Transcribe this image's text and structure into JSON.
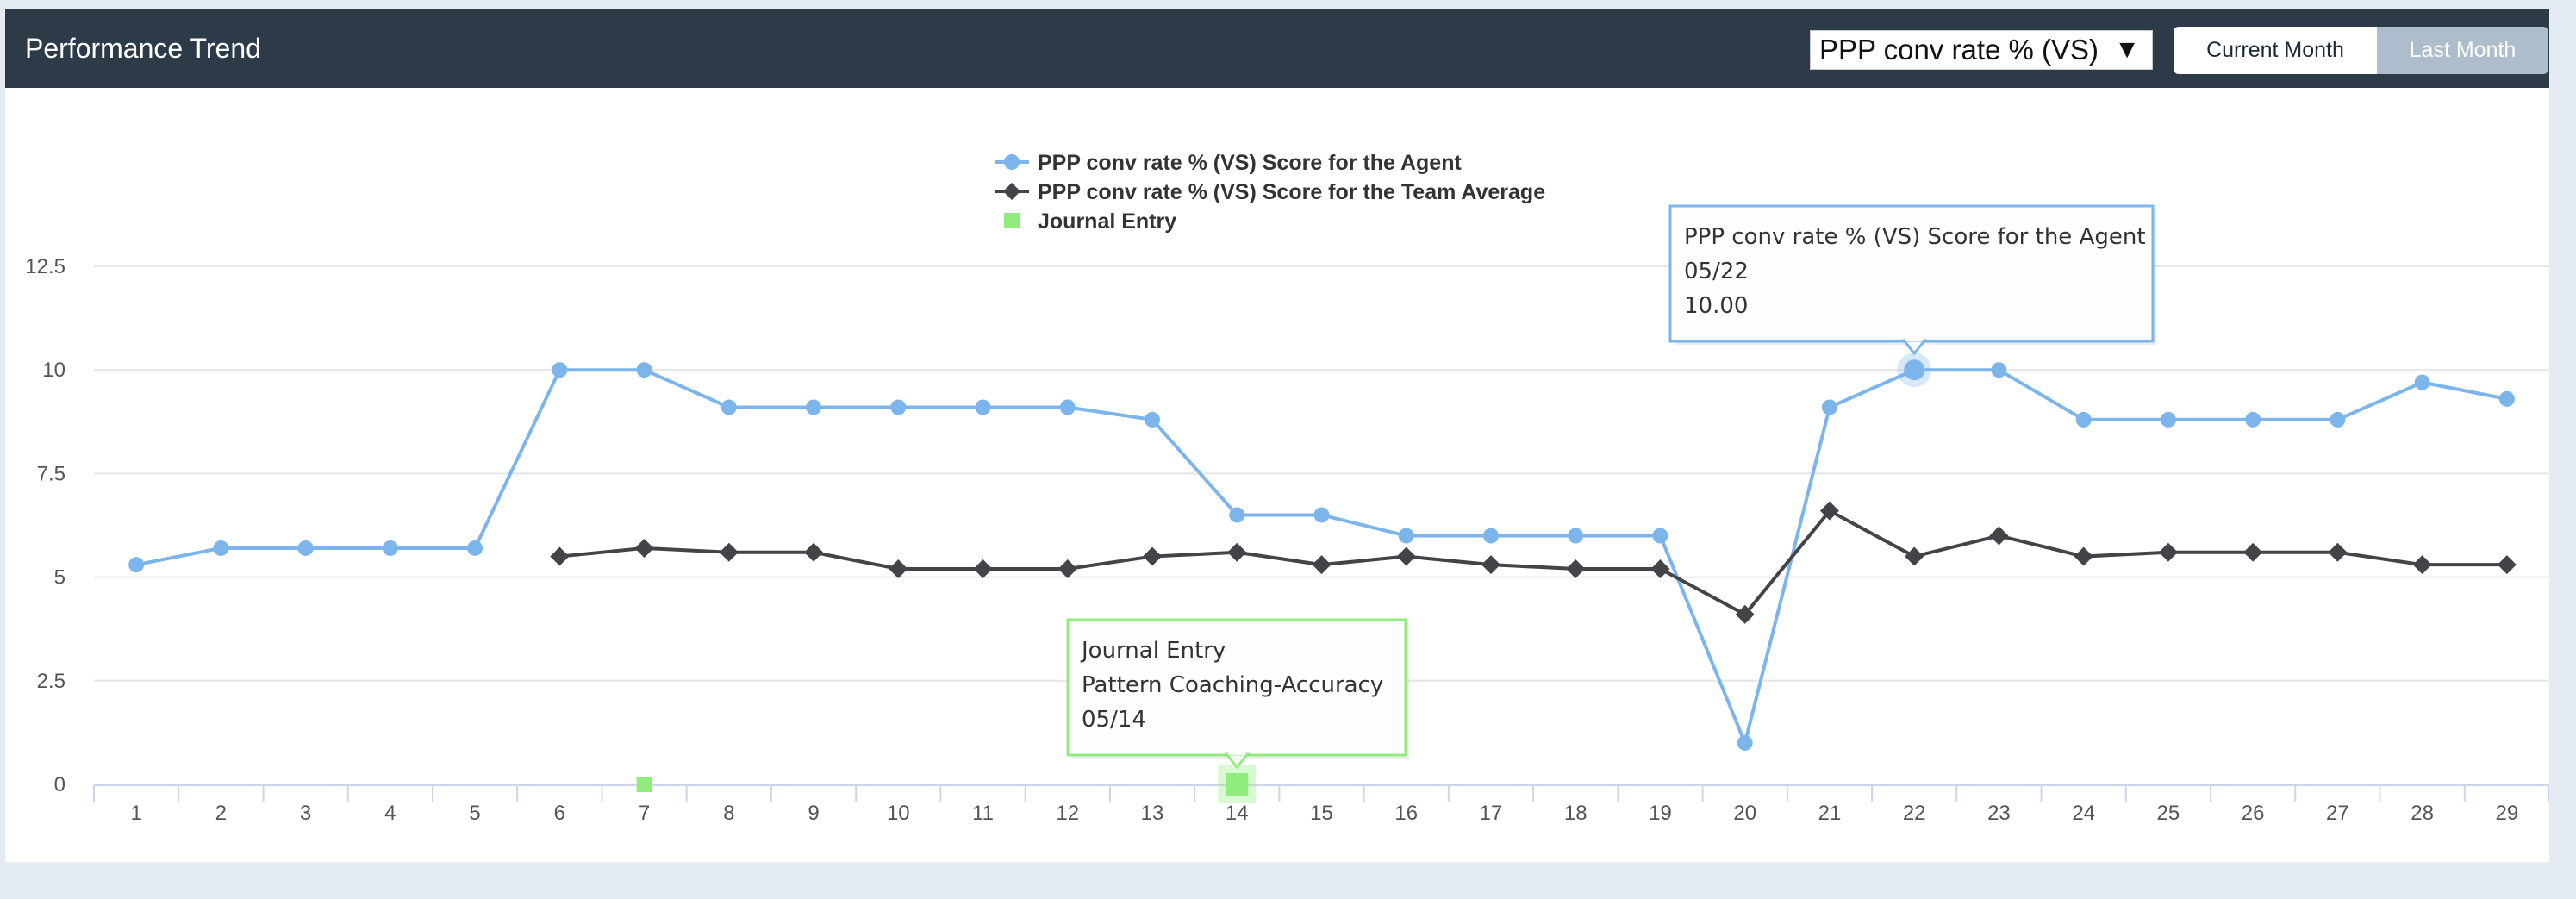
{
  "header": {
    "title": "Performance Trend",
    "metric_select": "PPP conv rate % (VS)",
    "buttons": {
      "current_month": "Current Month",
      "last_month": "Last Month"
    }
  },
  "colors": {
    "agent": "#7cb5ec",
    "team": "#434348",
    "journal": "#90ed7d",
    "header_bg": "#2d3a48"
  },
  "chart_data": {
    "type": "line",
    "x": [
      1,
      2,
      3,
      4,
      5,
      6,
      7,
      8,
      9,
      10,
      11,
      12,
      13,
      14,
      15,
      16,
      17,
      18,
      19,
      20,
      21,
      22,
      23,
      24,
      25,
      26,
      27,
      28,
      29
    ],
    "ylim": [
      0,
      12.5
    ],
    "yticks": [
      "0",
      "2.5",
      "5",
      "7.5",
      "10",
      "12.5"
    ],
    "legend_position": "top-center",
    "grid": true,
    "series": [
      {
        "name": "PPP conv rate % (VS) Score for the Agent",
        "marker": "circle",
        "values": [
          5.3,
          5.7,
          5.7,
          5.7,
          5.7,
          10,
          10,
          9.1,
          9.1,
          9.1,
          9.1,
          9.1,
          8.8,
          6.5,
          6.5,
          6,
          6,
          6,
          6,
          1,
          9.1,
          10,
          10,
          8.8,
          8.8,
          8.8,
          8.8,
          9.7,
          9.3
        ]
      },
      {
        "name": "PPP conv rate % (VS) Score for the Team Average",
        "marker": "diamond",
        "values": [
          null,
          null,
          null,
          null,
          null,
          5.5,
          5.7,
          5.6,
          5.6,
          5.2,
          5.2,
          5.2,
          5.5,
          5.6,
          5.3,
          5.5,
          5.3,
          5.2,
          5.2,
          4.1,
          6.6,
          5.5,
          6,
          5.5,
          5.6,
          5.6,
          5.6,
          5.3,
          5.3
        ]
      },
      {
        "name": "Journal Entry",
        "marker": "square",
        "points": [
          {
            "x": 7,
            "y": 0
          },
          {
            "x": 14,
            "y": 0
          }
        ]
      }
    ],
    "tooltips": [
      {
        "series": 0,
        "lines": [
          "PPP conv rate % (VS) Score for the Agent",
          "05/22",
          "10.00"
        ],
        "x": 22,
        "y": 10
      },
      {
        "series": 2,
        "lines": [
          "Journal Entry",
          "Pattern Coaching-Accuracy",
          "05/14"
        ],
        "x": 14,
        "y": 0
      }
    ]
  }
}
